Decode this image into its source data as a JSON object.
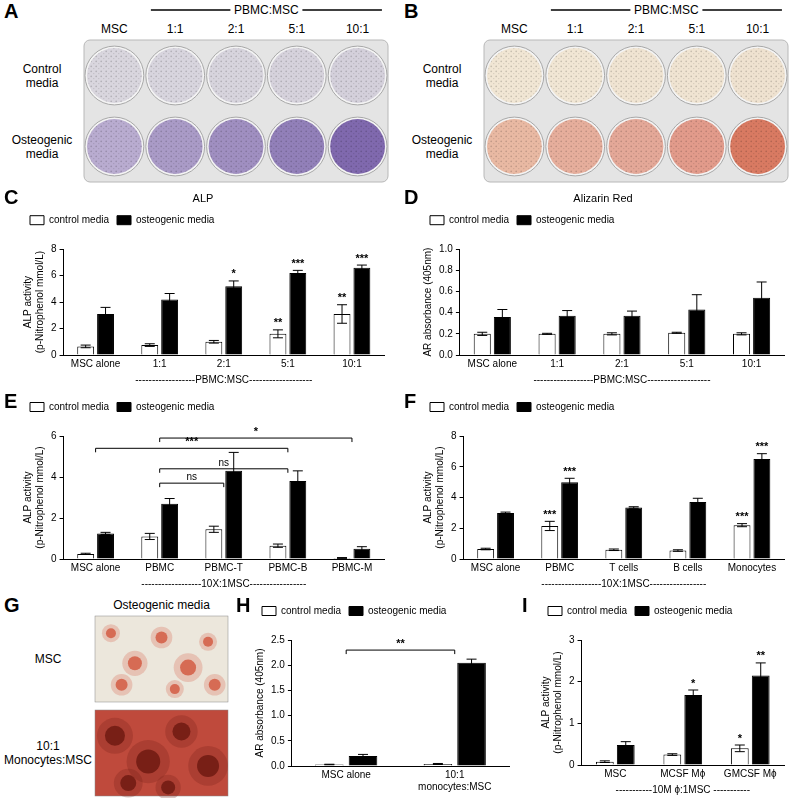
{
  "images": [
    {
      "panel_label": "A",
      "header": "PBMC:MSC",
      "columns": [
        "MSC",
        "1:1",
        "2:1",
        "5:1",
        "10:1"
      ],
      "rows": [
        "Control media",
        "Osteogenic media"
      ],
      "colors": [
        [
          "#d9d6de",
          "#d8d5de",
          "#d7d4dd",
          "#d6d2dc",
          "#d4d0db"
        ],
        [
          "#b9acd0",
          "#aa9bc7",
          "#a08fc1",
          "#9280b9",
          "#8069ae"
        ]
      ]
    },
    {
      "panel_label": "B",
      "header": "PBMC:MSC",
      "columns": [
        "MSC",
        "1:1",
        "2:1",
        "5:1",
        "10:1"
      ],
      "rows": [
        "Control media",
        "Osteogenic media"
      ],
      "colors": [
        [
          "#f1e6d4",
          "#f1e6d4",
          "#f0e4d2",
          "#f0e4d2",
          "#efe2d0"
        ],
        [
          "#e9b9a3",
          "#e6ae9c",
          "#e4a898",
          "#e29b8b",
          "#d97a62"
        ]
      ]
    },
    {
      "panel_label": "G",
      "title": "Osteogenic media",
      "rows": [
        "MSC",
        "10:1\nMonocytes:MSC"
      ]
    }
  ],
  "chart_data": [
    {
      "panel_label": "C",
      "type": "bar",
      "title": "ALP",
      "y_label": [
        "ALP activity",
        "(p-Nitrophenol mmol/L)"
      ],
      "x_label": "------------------PBMC:MSC-------------------",
      "categories": [
        "MSC alone",
        "1:1",
        "2:1",
        "5:1",
        "10:1"
      ],
      "series": [
        {
          "name": "control media",
          "color": "#ffffff",
          "values": [
            0.65,
            0.75,
            1.0,
            1.6,
            3.1
          ],
          "errors": [
            0.1,
            0.1,
            0.1,
            0.3,
            0.7
          ],
          "significance": [
            null,
            null,
            null,
            "**",
            "**"
          ]
        },
        {
          "name": "osteogenic media",
          "color": "#000000",
          "values": [
            3.1,
            4.2,
            5.2,
            6.2,
            6.6
          ],
          "errors": [
            0.5,
            0.45,
            0.4,
            0.2,
            0.2
          ],
          "significance": [
            null,
            null,
            "*",
            "***",
            "***"
          ]
        }
      ],
      "ylim": [
        0,
        8
      ],
      "yticks": [
        0,
        2,
        4,
        6,
        8
      ],
      "grid": false,
      "legend": "top-left"
    },
    {
      "panel_label": "D",
      "type": "bar",
      "title": "Alizarin Red",
      "y_label": [
        "AR absorbance (405nm)"
      ],
      "x_label": "------------------PBMC:MSC-------------------",
      "categories": [
        "MSC alone",
        "1:1",
        "2:1",
        "5:1",
        "10:1"
      ],
      "series": [
        {
          "name": "control media",
          "color": "#ffffff",
          "values": [
            0.2,
            0.2,
            0.2,
            0.21,
            0.2
          ],
          "errors": [
            0.015,
            0.005,
            0.01,
            0.005,
            0.01
          ]
        },
        {
          "name": "osteogenic media",
          "color": "#000000",
          "values": [
            0.36,
            0.37,
            0.37,
            0.43,
            0.54
          ],
          "errors": [
            0.07,
            0.05,
            0.045,
            0.14,
            0.15
          ]
        }
      ],
      "ylim": [
        0,
        1
      ],
      "yticks": [
        {
          "value": 0,
          "label": "0.0"
        },
        0.2,
        0.4,
        0.6,
        0.8,
        {
          "value": 1,
          "label": "1.0"
        }
      ],
      "grid": false,
      "legend": "top-left"
    },
    {
      "panel_label": "E",
      "type": "bar",
      "y_label": [
        "ALP activity",
        "(p-Nitrophenol mmol/L)"
      ],
      "x_label": "------------------10X:1MSC-----------------",
      "categories": [
        "MSC alone",
        "PBMC",
        "PBMC-T",
        "PBMC-B",
        "PBMC-M"
      ],
      "series": [
        {
          "name": "control media",
          "color": "#ffffff",
          "values": [
            0.25,
            1.1,
            1.45,
            0.65,
            0.05
          ],
          "errors": [
            0.03,
            0.15,
            0.15,
            0.08,
            0.02
          ]
        },
        {
          "name": "osteogenic media",
          "color": "#000000",
          "values": [
            1.25,
            2.7,
            4.3,
            3.8,
            0.5
          ],
          "errors": [
            0.05,
            0.25,
            0.9,
            0.5,
            0.1
          ]
        }
      ],
      "brackets": [
        {
          "from": "PBMC",
          "to": "PBMC-M",
          "y": 5.9,
          "label": "*"
        },
        {
          "from": "MSC alone",
          "to": "PBMC-B",
          "y": 5.4,
          "label": "***"
        },
        {
          "from": "PBMC",
          "to": "PBMC-B",
          "y": 4.4,
          "label": "ns"
        },
        {
          "from": "PBMC",
          "to": "PBMC-T",
          "y": 3.7,
          "label": "ns"
        }
      ],
      "ylim": [
        0,
        6
      ],
      "yticks": [
        0,
        2,
        4,
        6
      ],
      "grid": false,
      "legend": "top-left"
    },
    {
      "panel_label": "F",
      "type": "bar",
      "y_label": [
        "ALP activity",
        "(p-Nitrophenol mmol/L)"
      ],
      "x_label": "------------------10X:1MSC-----------------",
      "categories": [
        "MSC alone",
        "PBMC",
        "T cells",
        "B cells",
        "Monocytes"
      ],
      "series": [
        {
          "name": "control media",
          "color": "#ffffff",
          "values": [
            0.65,
            2.15,
            0.6,
            0.55,
            2.2
          ],
          "errors": [
            0.05,
            0.3,
            0.05,
            0.05,
            0.1
          ],
          "significance": [
            null,
            "***",
            null,
            null,
            "***"
          ]
        },
        {
          "name": "osteogenic media",
          "color": "#000000",
          "values": [
            3.0,
            5.0,
            3.35,
            3.7,
            6.5
          ],
          "errors": [
            0.05,
            0.25,
            0.05,
            0.25,
            0.35
          ],
          "significance": [
            null,
            "***",
            null,
            null,
            "***"
          ]
        }
      ],
      "ylim": [
        0,
        8
      ],
      "yticks": [
        0,
        2,
        4,
        6,
        8
      ],
      "grid": false,
      "legend": "top-left"
    },
    {
      "panel_label": "H",
      "type": "bar",
      "y_label": [
        "AR absorbance (405nm)"
      ],
      "categories": [
        "MSC alone",
        "10:1\nmonocytes:MSC"
      ],
      "series": [
        {
          "name": "control media",
          "color": "#ffffff",
          "values": [
            0.03,
            0.04
          ],
          "errors": [
            0.005,
            0.01
          ]
        },
        {
          "name": "osteogenic media",
          "color": "#000000",
          "values": [
            0.2,
            2.05
          ],
          "errors": [
            0.03,
            0.07
          ]
        }
      ],
      "brackets": [
        {
          "from": "MSC alone",
          "to": "10:1\nmonocytes:MSC",
          "y": 2.3,
          "label": "**"
        }
      ],
      "ylim": [
        0,
        2.5
      ],
      "yticks": [
        {
          "value": 0,
          "label": "0.0"
        },
        0.5,
        {
          "value": 1,
          "label": "1.0"
        },
        1.5,
        {
          "value": 2,
          "label": "2.0"
        },
        2.5
      ],
      "grid": false,
      "legend": "top-left"
    },
    {
      "panel_label": "I",
      "type": "bar",
      "y_label": [
        "ALP activity",
        "(p-Nitrophenol mmol/L)"
      ],
      "x_label": "-----------10M ϕ:1MSC -----------",
      "categories": [
        "MSC",
        "MCSF Mϕ",
        "GMCSF Mϕ"
      ],
      "series": [
        {
          "name": "control media",
          "color": "#ffffff",
          "values": [
            0.08,
            0.25,
            0.4
          ],
          "errors": [
            0.02,
            0.02,
            0.08
          ],
          "significance": [
            null,
            null,
            "*"
          ]
        },
        {
          "name": "osteogenic media",
          "color": "#000000",
          "values": [
            0.48,
            1.68,
            2.15
          ],
          "errors": [
            0.08,
            0.12,
            0.3
          ],
          "significance": [
            null,
            "*",
            "**"
          ]
        }
      ],
      "ylim": [
        0,
        3
      ],
      "yticks": [
        0,
        1,
        2,
        3
      ],
      "grid": false,
      "legend": "top-left"
    }
  ]
}
